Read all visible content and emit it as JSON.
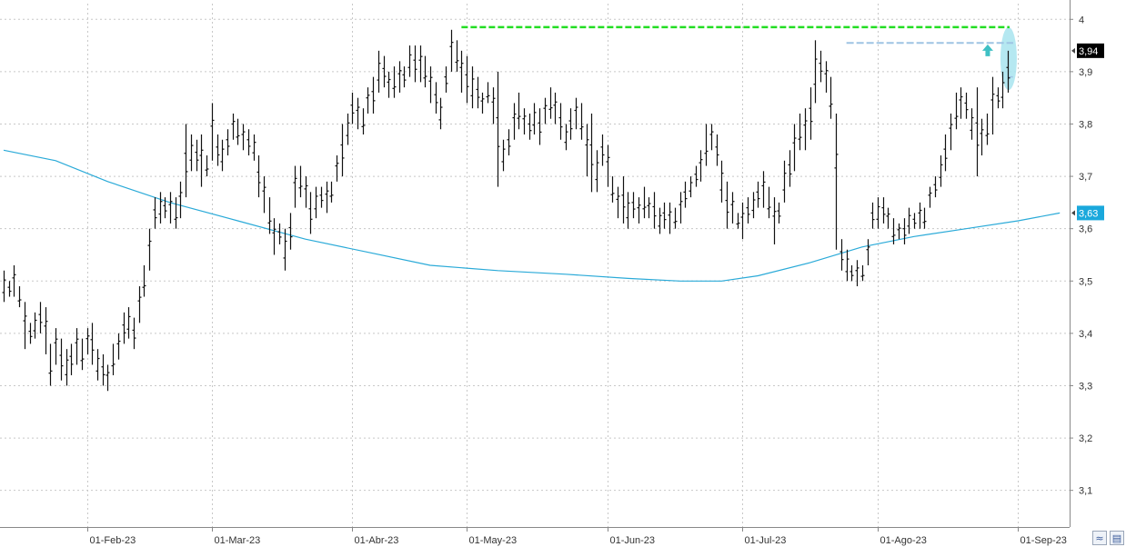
{
  "chart_data": {
    "type": "ohlc",
    "y_axis": {
      "min": 3.03,
      "max": 4.03,
      "ticks": [
        {
          "value": 4.0,
          "label": "4"
        },
        {
          "value": 3.9,
          "label": "3,9"
        },
        {
          "value": 3.8,
          "label": "3,8"
        },
        {
          "value": 3.7,
          "label": "3,7"
        },
        {
          "value": 3.6,
          "label": "3,6"
        },
        {
          "value": 3.5,
          "label": "3,5"
        },
        {
          "value": 3.4,
          "label": "3,4"
        },
        {
          "value": 3.3,
          "label": "3,3"
        },
        {
          "value": 3.2,
          "label": "3,2"
        },
        {
          "value": 3.1,
          "label": "3,1"
        }
      ]
    },
    "x_axis": {
      "ticks": [
        {
          "index": 16,
          "label": "01-Feb-23"
        },
        {
          "index": 40,
          "label": "01-Mar-23"
        },
        {
          "index": 67,
          "label": "01-Abr-23"
        },
        {
          "index": 89,
          "label": "01-May-23"
        },
        {
          "index": 116,
          "label": "01-Jun-23"
        },
        {
          "index": 142,
          "label": "01-Jul-23"
        },
        {
          "index": 168,
          "label": "01-Ago-23"
        },
        {
          "index": 195,
          "label": "01-Sep-23"
        }
      ]
    },
    "grid": true,
    "colors": {
      "bars": "#111111",
      "moving_average": "#2aaad8",
      "resistance": "#22dd22",
      "guides": "#9ec4e4",
      "highlight": "#a8e4ef",
      "arrow": "#3fc0c4",
      "last_price_badge": "#000000",
      "ma_badge": "#1aa8dc",
      "grid": "#c8c8c8"
    },
    "last_price": {
      "value": 3.94,
      "label": "3,94"
    },
    "moving_average_value": {
      "value": 3.63,
      "label": "3,63"
    },
    "bars_hl": [
      [
        3.52,
        3.46
      ],
      [
        3.5,
        3.47
      ],
      [
        3.53,
        3.47
      ],
      [
        3.49,
        3.45
      ],
      [
        3.46,
        3.37
      ],
      [
        3.42,
        3.38
      ],
      [
        3.44,
        3.39
      ],
      [
        3.46,
        3.4
      ],
      [
        3.45,
        3.36
      ],
      [
        3.38,
        3.3
      ],
      [
        3.41,
        3.34
      ],
      [
        3.39,
        3.31
      ],
      [
        3.37,
        3.3
      ],
      [
        3.38,
        3.32
      ],
      [
        3.41,
        3.34
      ],
      [
        3.39,
        3.33
      ],
      [
        3.41,
        3.36
      ],
      [
        3.42,
        3.34
      ],
      [
        3.37,
        3.31
      ],
      [
        3.36,
        3.3
      ],
      [
        3.34,
        3.29
      ],
      [
        3.38,
        3.32
      ],
      [
        3.4,
        3.35
      ],
      [
        3.44,
        3.38
      ],
      [
        3.45,
        3.39
      ],
      [
        3.43,
        3.37
      ],
      [
        3.49,
        3.42
      ],
      [
        3.53,
        3.47
      ],
      [
        3.6,
        3.52
      ],
      [
        3.66,
        3.6
      ],
      [
        3.67,
        3.61
      ],
      [
        3.66,
        3.62
      ],
      [
        3.67,
        3.61
      ],
      [
        3.66,
        3.6
      ],
      [
        3.69,
        3.62
      ],
      [
        3.8,
        3.66
      ],
      [
        3.78,
        3.71
      ],
      [
        3.77,
        3.71
      ],
      [
        3.78,
        3.68
      ],
      [
        3.74,
        3.7
      ],
      [
        3.84,
        3.73
      ],
      [
        3.78,
        3.72
      ],
      [
        3.77,
        3.71
      ],
      [
        3.79,
        3.74
      ],
      [
        3.82,
        3.77
      ],
      [
        3.81,
        3.76
      ],
      [
        3.8,
        3.75
      ],
      [
        3.79,
        3.74
      ],
      [
        3.78,
        3.73
      ],
      [
        3.74,
        3.66
      ],
      [
        3.7,
        3.63
      ],
      [
        3.66,
        3.59
      ],
      [
        3.62,
        3.55
      ],
      [
        3.61,
        3.57
      ],
      [
        3.6,
        3.52
      ],
      [
        3.63,
        3.56
      ],
      [
        3.72,
        3.64
      ],
      [
        3.72,
        3.66
      ],
      [
        3.7,
        3.64
      ],
      [
        3.67,
        3.59
      ],
      [
        3.68,
        3.62
      ],
      [
        3.68,
        3.64
      ],
      [
        3.69,
        3.63
      ],
      [
        3.69,
        3.65
      ],
      [
        3.74,
        3.69
      ],
      [
        3.8,
        3.7
      ],
      [
        3.82,
        3.76
      ],
      [
        3.86,
        3.8
      ],
      [
        3.85,
        3.79
      ],
      [
        3.83,
        3.78
      ],
      [
        3.87,
        3.82
      ],
      [
        3.89,
        3.82
      ],
      [
        3.94,
        3.86
      ],
      [
        3.93,
        3.87
      ],
      [
        3.9,
        3.85
      ],
      [
        3.91,
        3.85
      ],
      [
        3.92,
        3.86
      ],
      [
        3.91,
        3.87
      ],
      [
        3.95,
        3.89
      ],
      [
        3.95,
        3.88
      ],
      [
        3.95,
        3.88
      ],
      [
        3.93,
        3.87
      ],
      [
        3.91,
        3.84
      ],
      [
        3.88,
        3.82
      ],
      [
        3.85,
        3.79
      ],
      [
        3.91,
        3.86
      ],
      [
        3.98,
        3.9
      ],
      [
        3.96,
        3.9
      ],
      [
        3.94,
        3.86
      ],
      [
        3.93,
        3.84
      ],
      [
        3.91,
        3.83
      ],
      [
        3.89,
        3.83
      ],
      [
        3.86,
        3.82
      ],
      [
        3.88,
        3.84
      ],
      [
        3.87,
        3.8
      ],
      [
        3.9,
        3.68
      ],
      [
        3.77,
        3.71
      ],
      [
        3.79,
        3.74
      ],
      [
        3.84,
        3.77
      ],
      [
        3.86,
        3.79
      ],
      [
        3.83,
        3.78
      ],
      [
        3.82,
        3.77
      ],
      [
        3.84,
        3.78
      ],
      [
        3.83,
        3.76
      ],
      [
        3.85,
        3.8
      ],
      [
        3.87,
        3.81
      ],
      [
        3.86,
        3.8
      ],
      [
        3.84,
        3.77
      ],
      [
        3.8,
        3.75
      ],
      [
        3.83,
        3.77
      ],
      [
        3.85,
        3.79
      ],
      [
        3.84,
        3.77
      ],
      [
        3.8,
        3.7
      ],
      [
        3.82,
        3.67
      ],
      [
        3.75,
        3.67
      ],
      [
        3.78,
        3.72
      ],
      [
        3.76,
        3.68
      ],
      [
        3.7,
        3.65
      ],
      [
        3.68,
        3.62
      ],
      [
        3.7,
        3.61
      ],
      [
        3.67,
        3.6
      ],
      [
        3.67,
        3.62
      ],
      [
        3.66,
        3.61
      ],
      [
        3.68,
        3.62
      ],
      [
        3.66,
        3.62
      ],
      [
        3.67,
        3.6
      ],
      [
        3.64,
        3.59
      ],
      [
        3.65,
        3.6
      ],
      [
        3.65,
        3.59
      ],
      [
        3.64,
        3.6
      ],
      [
        3.67,
        3.61
      ],
      [
        3.69,
        3.64
      ],
      [
        3.7,
        3.66
      ],
      [
        3.72,
        3.68
      ],
      [
        3.75,
        3.69
      ],
      [
        3.8,
        3.72
      ],
      [
        3.8,
        3.75
      ],
      [
        3.78,
        3.72
      ],
      [
        3.73,
        3.65
      ],
      [
        3.69,
        3.6
      ],
      [
        3.67,
        3.61
      ],
      [
        3.63,
        3.6
      ],
      [
        3.65,
        3.58
      ],
      [
        3.66,
        3.61
      ],
      [
        3.67,
        3.62
      ],
      [
        3.69,
        3.64
      ],
      [
        3.71,
        3.64
      ],
      [
        3.68,
        3.62
      ],
      [
        3.66,
        3.57
      ],
      [
        3.65,
        3.61
      ],
      [
        3.73,
        3.65
      ],
      [
        3.75,
        3.68
      ],
      [
        3.8,
        3.71
      ],
      [
        3.82,
        3.75
      ],
      [
        3.83,
        3.75
      ],
      [
        3.87,
        3.77
      ],
      [
        3.96,
        3.84
      ],
      [
        3.94,
        3.88
      ],
      [
        3.92,
        3.86
      ],
      [
        3.89,
        3.81
      ],
      [
        3.82,
        3.56
      ],
      [
        3.58,
        3.52
      ],
      [
        3.56,
        3.5
      ],
      [
        3.53,
        3.5
      ],
      [
        3.54,
        3.49
      ],
      [
        3.53,
        3.5
      ],
      [
        3.58,
        3.53
      ],
      [
        3.65,
        3.6
      ],
      [
        3.66,
        3.6
      ],
      [
        3.66,
        3.61
      ],
      [
        3.64,
        3.6
      ],
      [
        3.62,
        3.57
      ],
      [
        3.61,
        3.58
      ],
      [
        3.62,
        3.57
      ],
      [
        3.64,
        3.59
      ],
      [
        3.63,
        3.6
      ],
      [
        3.65,
        3.6
      ],
      [
        3.64,
        3.6
      ],
      [
        3.68,
        3.64
      ],
      [
        3.7,
        3.66
      ],
      [
        3.74,
        3.68
      ],
      [
        3.78,
        3.71
      ],
      [
        3.82,
        3.75
      ],
      [
        3.86,
        3.79
      ],
      [
        3.87,
        3.81
      ],
      [
        3.86,
        3.81
      ],
      [
        3.83,
        3.77
      ],
      [
        3.87,
        3.7
      ],
      [
        3.81,
        3.74
      ],
      [
        3.82,
        3.76
      ],
      [
        3.89,
        3.78
      ],
      [
        3.87,
        3.83
      ],
      [
        3.9,
        3.83
      ],
      [
        3.94,
        3.86
      ]
    ],
    "moving_average_points": [
      [
        0,
        3.75
      ],
      [
        10,
        3.73
      ],
      [
        20,
        3.69
      ],
      [
        32,
        3.65
      ],
      [
        45,
        3.615
      ],
      [
        58,
        3.58
      ],
      [
        70,
        3.555
      ],
      [
        82,
        3.53
      ],
      [
        95,
        3.52
      ],
      [
        108,
        3.513
      ],
      [
        120,
        3.505
      ],
      [
        130,
        3.5
      ],
      [
        138,
        3.5
      ],
      [
        145,
        3.51
      ],
      [
        155,
        3.535
      ],
      [
        165,
        3.565
      ],
      [
        175,
        3.585
      ],
      [
        185,
        3.6
      ],
      [
        195,
        3.615
      ],
      [
        203,
        3.63
      ]
    ],
    "annotations": {
      "resistance_level": 3.985,
      "resistance_from_index": 88,
      "prior_high_level": 3.955,
      "prior_high_from_index": 162,
      "breakout_level": 3.89,
      "breakout_from_index": 194
    }
  },
  "toolbar": {
    "zoom_icon": "zigzag-zoom-icon",
    "save_icon": "floppy-disk-icon"
  }
}
